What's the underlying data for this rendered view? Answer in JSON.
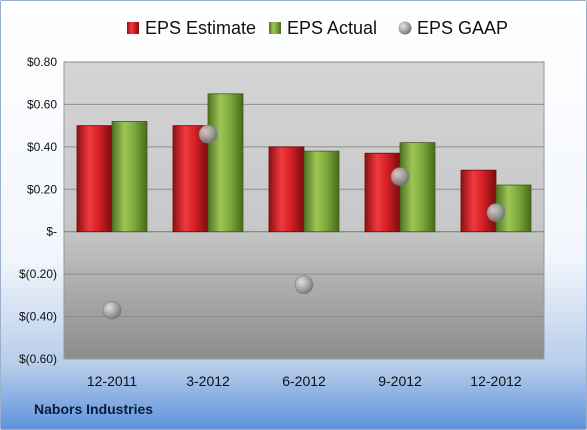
{
  "company": "Nabors Industries",
  "chart_data": {
    "type": "bar",
    "categories": [
      "12-2011",
      "3-2012",
      "6-2012",
      "9-2012",
      "12-2012"
    ],
    "series": [
      {
        "name": "EPS Estimate",
        "kind": "bar",
        "color": "#cc1f24",
        "values": [
          0.5,
          0.5,
          0.4,
          0.37,
          0.29
        ]
      },
      {
        "name": "EPS Actual",
        "kind": "bar",
        "color": "#7da63a",
        "values": [
          0.52,
          0.65,
          0.38,
          0.42,
          0.22
        ]
      },
      {
        "name": "EPS GAAP",
        "kind": "scatter",
        "color": "#9a9a9a",
        "values": [
          -0.37,
          0.46,
          -0.25,
          0.26,
          0.09
        ]
      }
    ],
    "ylim": [
      -0.6,
      0.8
    ],
    "yticks": [
      0.8,
      0.6,
      0.4,
      0.2,
      0,
      -0.2,
      -0.4,
      -0.6
    ],
    "ytick_labels": [
      "$0.80",
      "$0.60",
      "$0.40",
      "$0.20",
      "$-",
      "$(0.20)",
      "$(0.40)",
      "$(0.60)"
    ],
    "grid": true,
    "legend": "top"
  }
}
